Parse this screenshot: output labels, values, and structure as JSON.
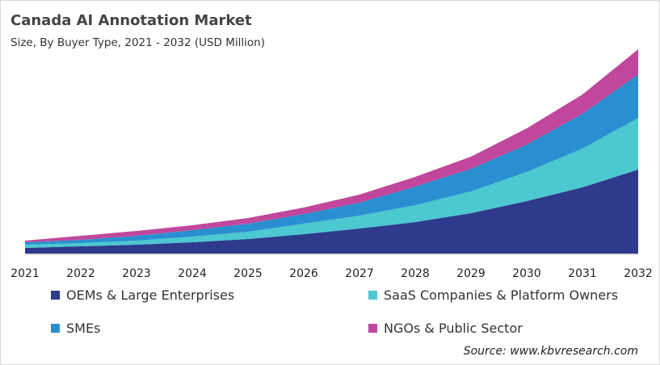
{
  "chart_data": {
    "type": "area",
    "stacked": true,
    "title": "Canada AI Annotation Market",
    "subtitle": "Size, By Buyer Type, 2021 - 2032 (USD Million)",
    "x": [
      "2021",
      "2022",
      "2023",
      "2024",
      "2025",
      "2026",
      "2027",
      "2028",
      "2029",
      "2030",
      "2031",
      "2032"
    ],
    "series": [
      {
        "name": "OEMs & Large Enterprises",
        "color": "#2e3a8c",
        "values": [
          7,
          9,
          11,
          14,
          18,
          24,
          31,
          39,
          50,
          65,
          82,
          104
        ]
      },
      {
        "name": "SaaS Companies & Platform Owners",
        "color": "#4cc8d0",
        "values": [
          4,
          4,
          5,
          7,
          9,
          13,
          16,
          21,
          27,
          36,
          48,
          64
        ]
      },
      {
        "name": "SMEs",
        "color": "#2a8fd0",
        "values": [
          3,
          4,
          6,
          8,
          10,
          12,
          16,
          23,
          28,
          34,
          43,
          54
        ]
      },
      {
        "name": "NGOs & Public Sector",
        "color": "#c0479b",
        "values": [
          2,
          5,
          6,
          6,
          7,
          8,
          10,
          12,
          15,
          20,
          24,
          31
        ]
      }
    ],
    "ylim": [
      0,
      253
    ],
    "y_axis_shown": false,
    "grid": false,
    "legend_placement": "bottom",
    "source": "Source: www.kbvresearch.com"
  }
}
